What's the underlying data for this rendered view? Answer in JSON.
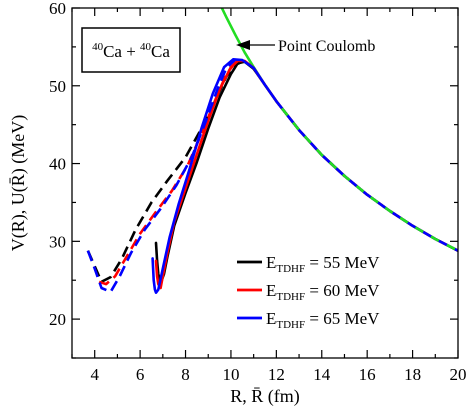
{
  "chart_data": {
    "type": "line",
    "xlabel": "R, R̄ (fm)",
    "ylabel": "V(R), U(R̄) (MeV)",
    "xlim": [
      3,
      20
    ],
    "ylim": [
      15,
      60
    ],
    "x_ticks": [
      4,
      6,
      8,
      10,
      12,
      14,
      16,
      18,
      20
    ],
    "y_ticks": [
      20,
      30,
      40,
      50,
      60
    ],
    "grid": false,
    "legend_position": "bottom-right",
    "system_label": {
      "pre_sup": "40",
      "first": "Ca",
      "plus": " + ",
      "post_sup": "40",
      "second": "Ca"
    },
    "annotation": {
      "text": "Point Coulomb"
    },
    "legend": [
      {
        "prefix": "E",
        "sub": "TDHF",
        "suffix": " = 55 MeV",
        "color": "#000000"
      },
      {
        "prefix": "E",
        "sub": "TDHF",
        "suffix": " = 60 MeV",
        "color": "#ff0000"
      },
      {
        "prefix": "E",
        "sub": "TDHF",
        "suffix": " = 65 MeV",
        "color": "#0000ff"
      }
    ],
    "series": [
      {
        "style": "point-coulomb",
        "color": "#22dd22",
        "x": [
          9.45,
          9.8,
          10.2,
          10.6,
          11.0,
          11.5,
          12,
          13,
          14,
          15,
          16,
          17,
          18,
          19,
          20
        ],
        "y": [
          60.9,
          58.8,
          56.5,
          54.3,
          52.4,
          50.1,
          48.0,
          44.3,
          41.1,
          38.4,
          36.0,
          33.9,
          32.0,
          30.3,
          28.8
        ]
      },
      {
        "style": "solid",
        "color": "#000000",
        "x": [
          6.7,
          6.75,
          6.8,
          6.9,
          7.05,
          7.2,
          7.5,
          8.0,
          8.5,
          9.0,
          9.5,
          10.0,
          10.3,
          10.6,
          11.0,
          11.5,
          12,
          13,
          14,
          15,
          16,
          17,
          18,
          19,
          20
        ],
        "y": [
          29.8,
          27.5,
          25.8,
          24.6,
          25.8,
          28.0,
          32.0,
          36.2,
          40.2,
          44.5,
          48.5,
          51.5,
          52.9,
          53.1,
          52.2,
          50.1,
          48.0,
          44.3,
          41.1,
          38.4,
          36.0,
          33.9,
          32.0,
          30.3,
          28.8
        ]
      },
      {
        "style": "dashed",
        "color": "#000000",
        "x": [
          3.7,
          4.0,
          4.3,
          4.7,
          5.2,
          5.8,
          6.5,
          7.2,
          8.0,
          8.7,
          9.3,
          9.8,
          10.2,
          10.5
        ],
        "y": [
          28.8,
          26.8,
          24.8,
          25.4,
          27.8,
          31.5,
          35.0,
          37.8,
          40.8,
          44.5,
          48.0,
          51.2,
          52.7,
          53.1
        ]
      },
      {
        "style": "solid",
        "color": "#ff0000",
        "x": [
          6.7,
          6.75,
          6.8,
          6.9,
          7.0,
          7.2,
          7.5,
          8.0,
          8.5,
          9.0,
          9.5,
          10.0,
          10.3,
          10.6,
          11.0,
          11.5,
          12,
          13,
          14,
          15,
          16,
          17,
          18,
          19,
          20
        ],
        "y": [
          27.5,
          25.5,
          24.5,
          24.0,
          25.5,
          28.5,
          32.5,
          36.8,
          41.2,
          45.5,
          49.5,
          52.4,
          53.2,
          53.2,
          52.3,
          50.1,
          48.0,
          44.3,
          41.1,
          38.4,
          36.0,
          33.9,
          32.0,
          30.3,
          28.8
        ]
      },
      {
        "style": "dashed",
        "color": "#ff0000",
        "x": [
          4.2,
          4.5,
          4.9,
          5.4,
          6.0,
          6.7,
          7.4,
          8.1,
          8.8,
          9.4,
          9.8,
          10.2,
          10.5
        ],
        "y": [
          24.8,
          24.5,
          25.5,
          28.0,
          31.0,
          33.8,
          36.5,
          39.8,
          44.5,
          48.8,
          51.5,
          53.0,
          53.3
        ]
      },
      {
        "style": "solid",
        "color": "#0000ff",
        "x": [
          6.55,
          6.6,
          6.65,
          6.7,
          6.8,
          7.0,
          7.3,
          7.7,
          8.2,
          8.7,
          9.2,
          9.7,
          10.1,
          10.5,
          11.0,
          11.5,
          12,
          13,
          14,
          15,
          16,
          17,
          18,
          19,
          20
        ],
        "y": [
          27.8,
          25.0,
          23.8,
          23.4,
          23.8,
          26.5,
          30.5,
          34.8,
          39.5,
          44.5,
          49.0,
          52.4,
          53.4,
          53.3,
          52.3,
          50.1,
          48.0,
          44.3,
          41.1,
          38.4,
          36.0,
          33.9,
          32.0,
          30.3,
          28.8
        ]
      },
      {
        "style": "dashed",
        "color": "#0000ff",
        "x": [
          3.7,
          4.0,
          4.3,
          4.7,
          5.1,
          5.6,
          6.2,
          6.9,
          7.6,
          8.3,
          8.9,
          9.4,
          9.8,
          10.2
        ],
        "y": [
          28.8,
          26.5,
          24.0,
          23.5,
          25.5,
          28.5,
          31.5,
          34.2,
          37.2,
          41.0,
          45.5,
          49.5,
          52.3,
          53.4
        ]
      }
    ]
  }
}
